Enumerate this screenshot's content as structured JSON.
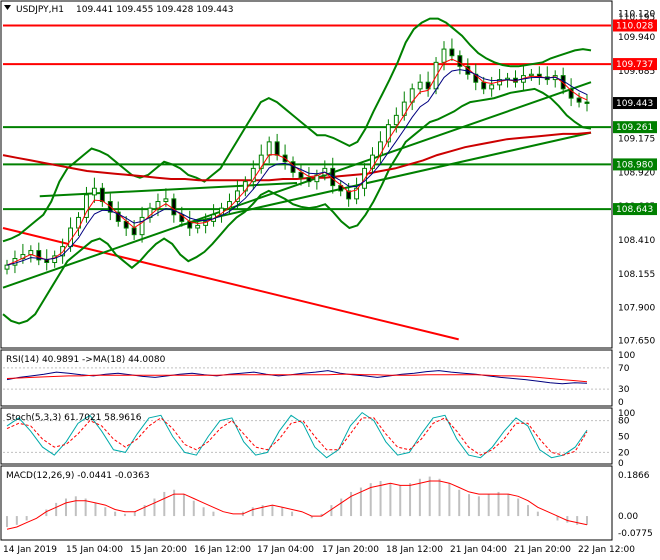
{
  "header": {
    "symbol": "USDJPY,H1",
    "ohlc": "109.441 109.455 109.428 109.443"
  },
  "colors": {
    "level": "#ff0000",
    "trend": "#008000",
    "bollinger": "#008000",
    "ma_long": "#cc0000",
    "candle": "#008000",
    "ema_fast": "#ff0000",
    "ema_slow": "#000080",
    "rsi": "#000080",
    "rsi_ma": "#ff0000",
    "stoch_main": "#00aaaa",
    "stoch_signal": "#ff0000",
    "macd_hist": "#c0c0c0",
    "macd_signal": "#ff0000",
    "current_price_bg": "#000000"
  },
  "chart_data": [
    {
      "id": "price",
      "type": "candlestick",
      "title": "USDJPY,H1 109.441 109.455 109.428 109.443",
      "ylim": [
        107.61,
        110.16
      ],
      "y_ticks": [
        "110.195",
        "110.120",
        "109.940",
        "109.685",
        "109.443",
        "109.175",
        "108.920",
        "108.665",
        "108.410",
        "108.155",
        "107.900",
        "107.650"
      ],
      "x_ticks": [
        "14 Jan 2019",
        "15 Jan 04:00",
        "15 Jan 20:00",
        "16 Jan 12:00",
        "17 Jan 04:00",
        "17 Jan 20:00",
        "18 Jan 12:00",
        "21 Jan 04:00",
        "21 Jan 20:00",
        "22 Jan 12:00"
      ],
      "levels": [
        {
          "label": "110.028",
          "value": 110.028,
          "color": "#ff0000"
        },
        {
          "label": "109.737",
          "value": 109.737,
          "color": "#ff0000"
        },
        {
          "label": "109.261",
          "value": 109.261,
          "color": "#008000"
        },
        {
          "label": "108.980",
          "value": 108.98,
          "color": "#008000"
        },
        {
          "label": "108.643",
          "value": 108.643,
          "color": "#008000"
        }
      ],
      "current_price": {
        "label": "109.443",
        "value": 109.443
      },
      "close_series": [
        108.22,
        108.27,
        108.3,
        108.33,
        108.26,
        108.24,
        108.29,
        108.36,
        108.5,
        108.58,
        108.75,
        108.8,
        108.7,
        108.62,
        108.55,
        108.5,
        108.45,
        108.58,
        108.65,
        108.7,
        108.72,
        108.6,
        108.55,
        108.5,
        108.52,
        108.55,
        108.6,
        108.65,
        108.7,
        108.78,
        108.85,
        108.95,
        109.05,
        109.15,
        109.05,
        109.0,
        108.92,
        108.88,
        108.85,
        108.9,
        108.95,
        108.82,
        108.78,
        108.72,
        108.8,
        108.95,
        109.05,
        109.15,
        109.28,
        109.35,
        109.45,
        109.55,
        109.6,
        109.55,
        109.75,
        109.85,
        109.8,
        109.72,
        109.66,
        109.6,
        109.55,
        109.58,
        109.62,
        109.63,
        109.6,
        109.65,
        109.66,
        109.64,
        109.62,
        109.65,
        109.55,
        109.48,
        109.45,
        109.44
      ],
      "bb_upper": [
        108.4,
        108.42,
        108.45,
        108.5,
        108.55,
        108.6,
        108.7,
        108.85,
        108.95,
        109.0,
        109.05,
        109.1,
        109.08,
        109.05,
        109.0,
        108.95,
        108.9,
        108.88,
        108.9,
        108.95,
        109.0,
        108.98,
        108.95,
        108.9,
        108.88,
        108.85,
        108.9,
        108.95,
        109.05,
        109.15,
        109.25,
        109.35,
        109.45,
        109.48,
        109.45,
        109.4,
        109.35,
        109.3,
        109.25,
        109.2,
        109.2,
        109.18,
        109.15,
        109.12,
        109.15,
        109.25,
        109.38,
        109.5,
        109.62,
        109.75,
        109.9,
        110.0,
        110.05,
        110.08,
        110.08,
        110.05,
        110.0,
        109.95,
        109.88,
        109.82,
        109.78,
        109.75,
        109.73,
        109.72,
        109.72,
        109.73,
        109.74,
        109.75,
        109.78,
        109.8,
        109.82,
        109.84,
        109.85,
        109.84
      ],
      "bb_lower": [
        107.85,
        107.8,
        107.78,
        107.8,
        107.85,
        107.95,
        108.05,
        108.15,
        108.25,
        108.3,
        108.35,
        108.4,
        108.42,
        108.38,
        108.3,
        108.25,
        108.2,
        108.25,
        108.32,
        108.38,
        108.42,
        108.38,
        108.3,
        108.25,
        108.28,
        108.32,
        108.38,
        108.45,
        108.52,
        108.58,
        108.62,
        108.68,
        108.75,
        108.78,
        108.75,
        108.72,
        108.68,
        108.66,
        108.65,
        108.66,
        108.68,
        108.62,
        108.55,
        108.5,
        108.52,
        108.6,
        108.7,
        108.82,
        108.95,
        109.05,
        109.15,
        109.2,
        109.25,
        109.3,
        109.32,
        109.35,
        109.38,
        109.42,
        109.45,
        109.46,
        109.47,
        109.48,
        109.5,
        109.52,
        109.53,
        109.54,
        109.55,
        109.52,
        109.48,
        109.42,
        109.35,
        109.3,
        109.26,
        109.25
      ],
      "ma_long": [
        109.05,
        109.03,
        109.01,
        108.99,
        108.97,
        108.95,
        108.93,
        108.92,
        108.91,
        108.9,
        108.89,
        108.88,
        108.87,
        108.87,
        108.86,
        108.86,
        108.86,
        108.86,
        108.86,
        108.86,
        108.87,
        108.87,
        108.88,
        108.88,
        108.89,
        108.9,
        108.91,
        108.93,
        108.95,
        108.98,
        109.01,
        109.05,
        109.08,
        109.11,
        109.13,
        109.15,
        109.17,
        109.18,
        109.19,
        109.2,
        109.21,
        109.21,
        109.22
      ],
      "series": [
        {
          "name": "",
          "type": "trendline",
          "color": "#ff0000",
          "points": [
            [
              0,
              108.5
            ],
            [
              62,
              107.66
            ]
          ]
        },
        {
          "name": "",
          "type": "trendline",
          "color": "#008000",
          "points": [
            [
              0,
              108.05
            ],
            [
              80,
              109.6
            ]
          ]
        },
        {
          "name": "",
          "type": "trendline",
          "color": "#008000",
          "points": [
            [
              24,
              108.52
            ],
            [
              80,
              109.22
            ]
          ]
        },
        {
          "name": "",
          "type": "trendline",
          "color": "#008000",
          "points": [
            [
              5,
              108.74
            ],
            [
              40,
              108.84
            ]
          ]
        }
      ]
    },
    {
      "id": "rsi",
      "type": "line",
      "title": "RSI(14) 40.9891 ->MA(18) 44.0080",
      "ylim": [
        0,
        100
      ],
      "y_ticks": [
        "100",
        "70",
        "30",
        "0"
      ],
      "series": [
        {
          "name": "RSI(14)",
          "values": [
            48,
            52,
            55,
            58,
            62,
            60,
            57,
            55,
            58,
            60,
            57,
            54,
            52,
            55,
            58,
            60,
            57,
            55,
            58,
            60,
            62,
            58,
            55,
            57,
            60,
            62,
            65,
            60,
            57,
            55,
            52,
            55,
            58,
            60,
            63,
            65,
            62,
            60,
            58,
            55,
            52,
            50,
            48,
            45,
            42,
            40,
            42,
            41
          ]
        },
        {
          "name": "MA(18)",
          "values": [
            50,
            51,
            52,
            53,
            54,
            55,
            55,
            56,
            56,
            56,
            56,
            56,
            56,
            56,
            56,
            56,
            56,
            56,
            57,
            57,
            57,
            57,
            57,
            57,
            57,
            57,
            57,
            58,
            58,
            57,
            57,
            56,
            56,
            56,
            57,
            57,
            57,
            57,
            57,
            56,
            55,
            55,
            54,
            52,
            50,
            48,
            46,
            44
          ]
        }
      ]
    },
    {
      "id": "stoch",
      "type": "line",
      "title": "Stoch(5,3,3) 61.7021 58.9616",
      "ylim": [
        0,
        100
      ],
      "y_ticks": [
        "100",
        "80",
        "50",
        "20",
        "0"
      ],
      "series": [
        {
          "name": "Stoch main",
          "values": [
            70,
            85,
            60,
            30,
            15,
            40,
            75,
            90,
            60,
            25,
            20,
            55,
            85,
            90,
            50,
            20,
            15,
            50,
            80,
            85,
            40,
            15,
            20,
            60,
            90,
            75,
            30,
            10,
            25,
            70,
            95,
            80,
            40,
            15,
            20,
            55,
            85,
            90,
            45,
            15,
            10,
            30,
            60,
            85,
            70,
            25,
            10,
            15,
            30,
            62
          ]
        },
        {
          "name": "Stoch signal",
          "values": [
            65,
            75,
            70,
            45,
            30,
            35,
            55,
            80,
            70,
            45,
            30,
            45,
            70,
            85,
            65,
            35,
            25,
            40,
            65,
            80,
            55,
            30,
            25,
            45,
            75,
            80,
            50,
            25,
            25,
            55,
            85,
            85,
            55,
            30,
            25,
            45,
            75,
            85,
            60,
            30,
            15,
            25,
            45,
            75,
            75,
            45,
            20,
            15,
            22,
            59
          ]
        }
      ]
    },
    {
      "id": "macd",
      "type": "bar",
      "title": "MACD(12,26,9) -0.0441 -0.0363",
      "ylim": [
        -0.1,
        0.21
      ],
      "y_ticks": [
        "0.1866",
        "0.00",
        "-0.0775"
      ],
      "series": [
        {
          "name": "MACD histogram",
          "values": [
            -0.05,
            -0.04,
            -0.02,
            0.0,
            0.03,
            0.06,
            0.08,
            0.09,
            0.08,
            0.06,
            0.04,
            0.02,
            0.01,
            0.02,
            0.05,
            0.08,
            0.11,
            0.12,
            0.1,
            0.07,
            0.04,
            0.02,
            0.0,
            0.0,
            0.02,
            0.04,
            0.05,
            0.05,
            0.04,
            0.02,
            0.0,
            -0.01,
            0.01,
            0.05,
            0.08,
            0.11,
            0.13,
            0.15,
            0.16,
            0.15,
            0.14,
            0.15,
            0.17,
            0.18,
            0.17,
            0.15,
            0.12,
            0.1,
            0.09,
            0.1,
            0.11,
            0.1,
            0.08,
            0.05,
            0.02,
            0.0,
            -0.02,
            -0.03,
            -0.04,
            -0.04
          ]
        },
        {
          "name": "Signal",
          "values": [
            -0.06,
            -0.05,
            -0.03,
            -0.01,
            0.02,
            0.04,
            0.06,
            0.07,
            0.07,
            0.06,
            0.05,
            0.03,
            0.02,
            0.02,
            0.04,
            0.06,
            0.08,
            0.1,
            0.1,
            0.08,
            0.06,
            0.04,
            0.02,
            0.01,
            0.01,
            0.03,
            0.04,
            0.05,
            0.04,
            0.03,
            0.02,
            0.0,
            0.0,
            0.03,
            0.06,
            0.09,
            0.11,
            0.13,
            0.14,
            0.15,
            0.14,
            0.14,
            0.15,
            0.16,
            0.16,
            0.15,
            0.13,
            0.11,
            0.1,
            0.1,
            0.1,
            0.1,
            0.09,
            0.07,
            0.04,
            0.02,
            0.0,
            -0.02,
            -0.03,
            -0.04
          ]
        }
      ]
    }
  ]
}
